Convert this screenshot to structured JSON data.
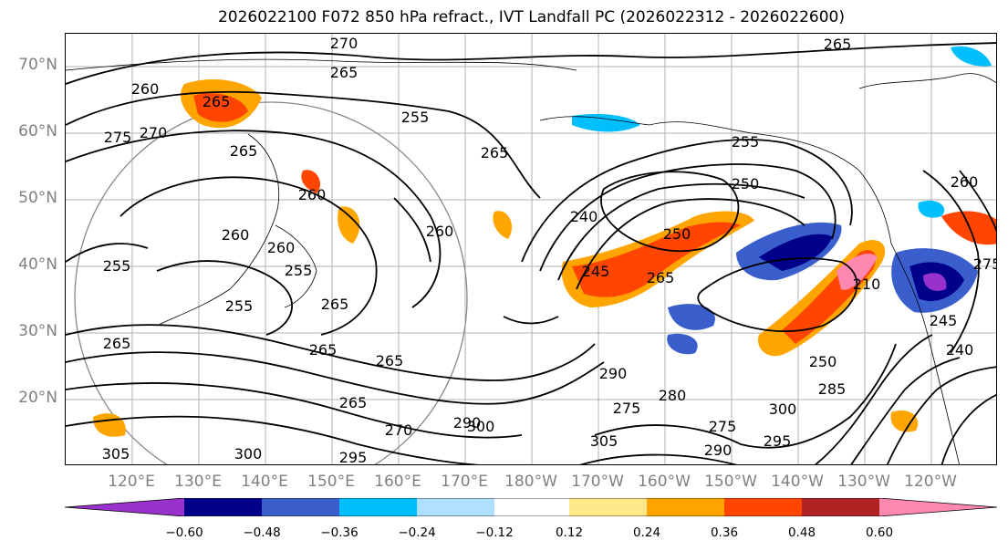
{
  "title": "2026022100 F072 850 hPa refract., IVT Landfall PC (2026022312 - 2026022600)",
  "lat_labels": [
    "70°N",
    "60°N",
    "50°N",
    "40°N",
    "30°N",
    "20°N"
  ],
  "lon_labels": [
    "120°E",
    "130°E",
    "140°E",
    "150°E",
    "160°E",
    "170°E",
    "180°W",
    "170°W",
    "160°W",
    "150°W",
    "140°W",
    "130°W",
    "120°W"
  ],
  "colorbar": {
    "ticks": [
      "−0.60",
      "−0.48",
      "−0.36",
      "−0.24",
      "−0.12",
      "0.12",
      "0.24",
      "0.36",
      "0.48",
      "0.60"
    ],
    "colors": [
      "#9932cc",
      "#00008b",
      "#3a5fcd",
      "#00bfff",
      "#b0e0ff",
      "#ffffff",
      "#ffe88a",
      "#ffa500",
      "#ff4500",
      "#b22222",
      "#ff88b0"
    ]
  },
  "contour_labels": [
    "270",
    "265",
    "265",
    "260",
    "265",
    "255",
    "270",
    "275",
    "265",
    "255",
    "265",
    "260",
    "255",
    "260",
    "240",
    "250",
    "250",
    "245",
    "265",
    "260",
    "265",
    "265",
    "255",
    "255",
    "265",
    "265",
    "270",
    "260",
    "265",
    "290",
    "275",
    "280",
    "275",
    "290",
    "290",
    "295",
    "300",
    "300",
    "305",
    "305",
    "300",
    "295",
    "210",
    "245",
    "240",
    "250",
    "285",
    "260",
    "275"
  ]
}
